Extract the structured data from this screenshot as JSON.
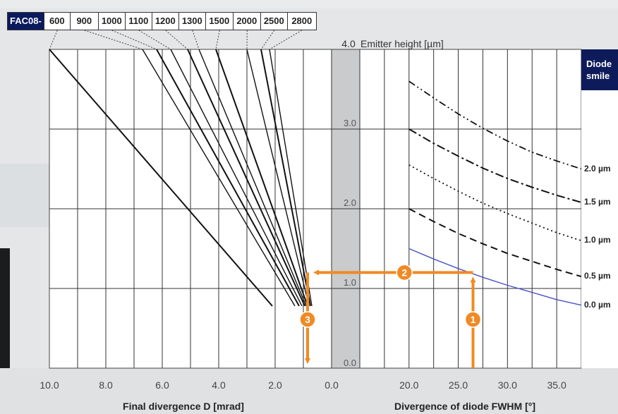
{
  "fac": {
    "prefix": "FAC08-",
    "lenses": [
      "600",
      "900",
      "1000",
      "1100",
      "1200",
      "1300",
      "1500",
      "2000",
      "2500",
      "2800"
    ]
  },
  "smile": {
    "title_line1": "Diode",
    "title_line2": "smile",
    "labels": [
      "2.0 µm",
      "1.5 µm",
      "1.0 µm",
      "0.5 µm",
      "0.0 µm"
    ]
  },
  "chart_data": [
    {
      "type": "line",
      "panel": "left",
      "xlabel": "Final divergence D [mrad]",
      "xlim": [
        10.0,
        0.0
      ],
      "ylim": [
        0.0,
        4.0
      ],
      "x_ticks": [
        "10.0",
        "8.0",
        "6.0",
        "4.0",
        "2.0",
        "0.0"
      ],
      "series": [
        {
          "name": "600",
          "points": [
            [
              10.0,
              4.0
            ],
            [
              2.1,
              0.78
            ]
          ]
        },
        {
          "name": "900",
          "points": [
            [
              6.7,
              4.0
            ],
            [
              1.3,
              0.78
            ]
          ]
        },
        {
          "name": "1000",
          "points": [
            [
              6.2,
              4.0
            ],
            [
              1.15,
              0.78
            ]
          ]
        },
        {
          "name": "1100",
          "points": [
            [
              5.7,
              4.0
            ],
            [
              1.05,
              0.78
            ]
          ]
        },
        {
          "name": "1200",
          "points": [
            [
              5.1,
              4.0
            ],
            [
              0.95,
              0.78
            ]
          ]
        },
        {
          "name": "1300",
          "points": [
            [
              4.7,
              4.0
            ],
            [
              0.9,
              0.78
            ]
          ]
        },
        {
          "name": "1500",
          "points": [
            [
              4.1,
              4.0
            ],
            [
              0.85,
              0.78
            ]
          ]
        },
        {
          "name": "2000",
          "points": [
            [
              3.0,
              4.0
            ],
            [
              0.8,
              0.78
            ]
          ]
        },
        {
          "name": "2500",
          "points": [
            [
              2.5,
              4.0
            ],
            [
              0.75,
              0.78
            ]
          ]
        },
        {
          "name": "2800",
          "points": [
            [
              2.2,
              4.0
            ],
            [
              0.7,
              0.78
            ]
          ]
        }
      ]
    },
    {
      "type": "line",
      "panel": "right",
      "title": "Emitter height [µm]",
      "xlabel": "Divergence of diode FWHM [°]",
      "xlim": [
        15.0,
        37.5
      ],
      "ylim": [
        0.0,
        4.0
      ],
      "x_ticks": [
        "20.0",
        "25.0",
        "30.0",
        "35.0"
      ],
      "y_ticks": [
        "4.0",
        "3.0",
        "2.0",
        "1.0",
        "0.0"
      ],
      "series": [
        {
          "name": "2.0 µm",
          "style": "dash-dot-dot",
          "x": [
            20,
            22.5,
            25,
            27.5,
            30,
            32.5,
            35,
            37.5
          ],
          "y": [
            3.6,
            3.39,
            3.19,
            3.01,
            2.85,
            2.71,
            2.6,
            2.5
          ]
        },
        {
          "name": "1.5 µm",
          "style": "dash-dot",
          "x": [
            20,
            22.5,
            25,
            27.5,
            30,
            32.5,
            35,
            37.5
          ],
          "y": [
            3.0,
            2.82,
            2.66,
            2.51,
            2.38,
            2.27,
            2.17,
            2.08
          ]
        },
        {
          "name": "1.0 µm",
          "style": "dotted",
          "x": [
            20,
            22.5,
            25,
            27.5,
            30,
            32.5,
            35,
            37.5
          ],
          "y": [
            2.55,
            2.38,
            2.22,
            2.07,
            1.94,
            1.82,
            1.7,
            1.6
          ]
        },
        {
          "name": "0.5 µm",
          "style": "dashed",
          "x": [
            20,
            22.5,
            25,
            27.5,
            30,
            32.5,
            35,
            37.5
          ],
          "y": [
            2.0,
            1.84,
            1.69,
            1.56,
            1.44,
            1.34,
            1.24,
            1.15
          ]
        },
        {
          "name": "0.0 µm",
          "style": "solid-blue",
          "x": [
            20,
            22.5,
            25,
            27.5,
            30,
            32.5,
            35,
            37.5
          ],
          "y": [
            1.5,
            1.37,
            1.25,
            1.14,
            1.04,
            0.95,
            0.86,
            0.79
          ]
        }
      ]
    }
  ],
  "annotations": {
    "steps": [
      "1",
      "2",
      "3"
    ],
    "example_fwhm": 26.5,
    "example_emitter_height": 1.2,
    "example_final_divergence": 0.85
  },
  "colors": {
    "accent": "#f08a24",
    "dark_blue": "#0e1b5a",
    "curve_blue": "#4a50c8"
  }
}
